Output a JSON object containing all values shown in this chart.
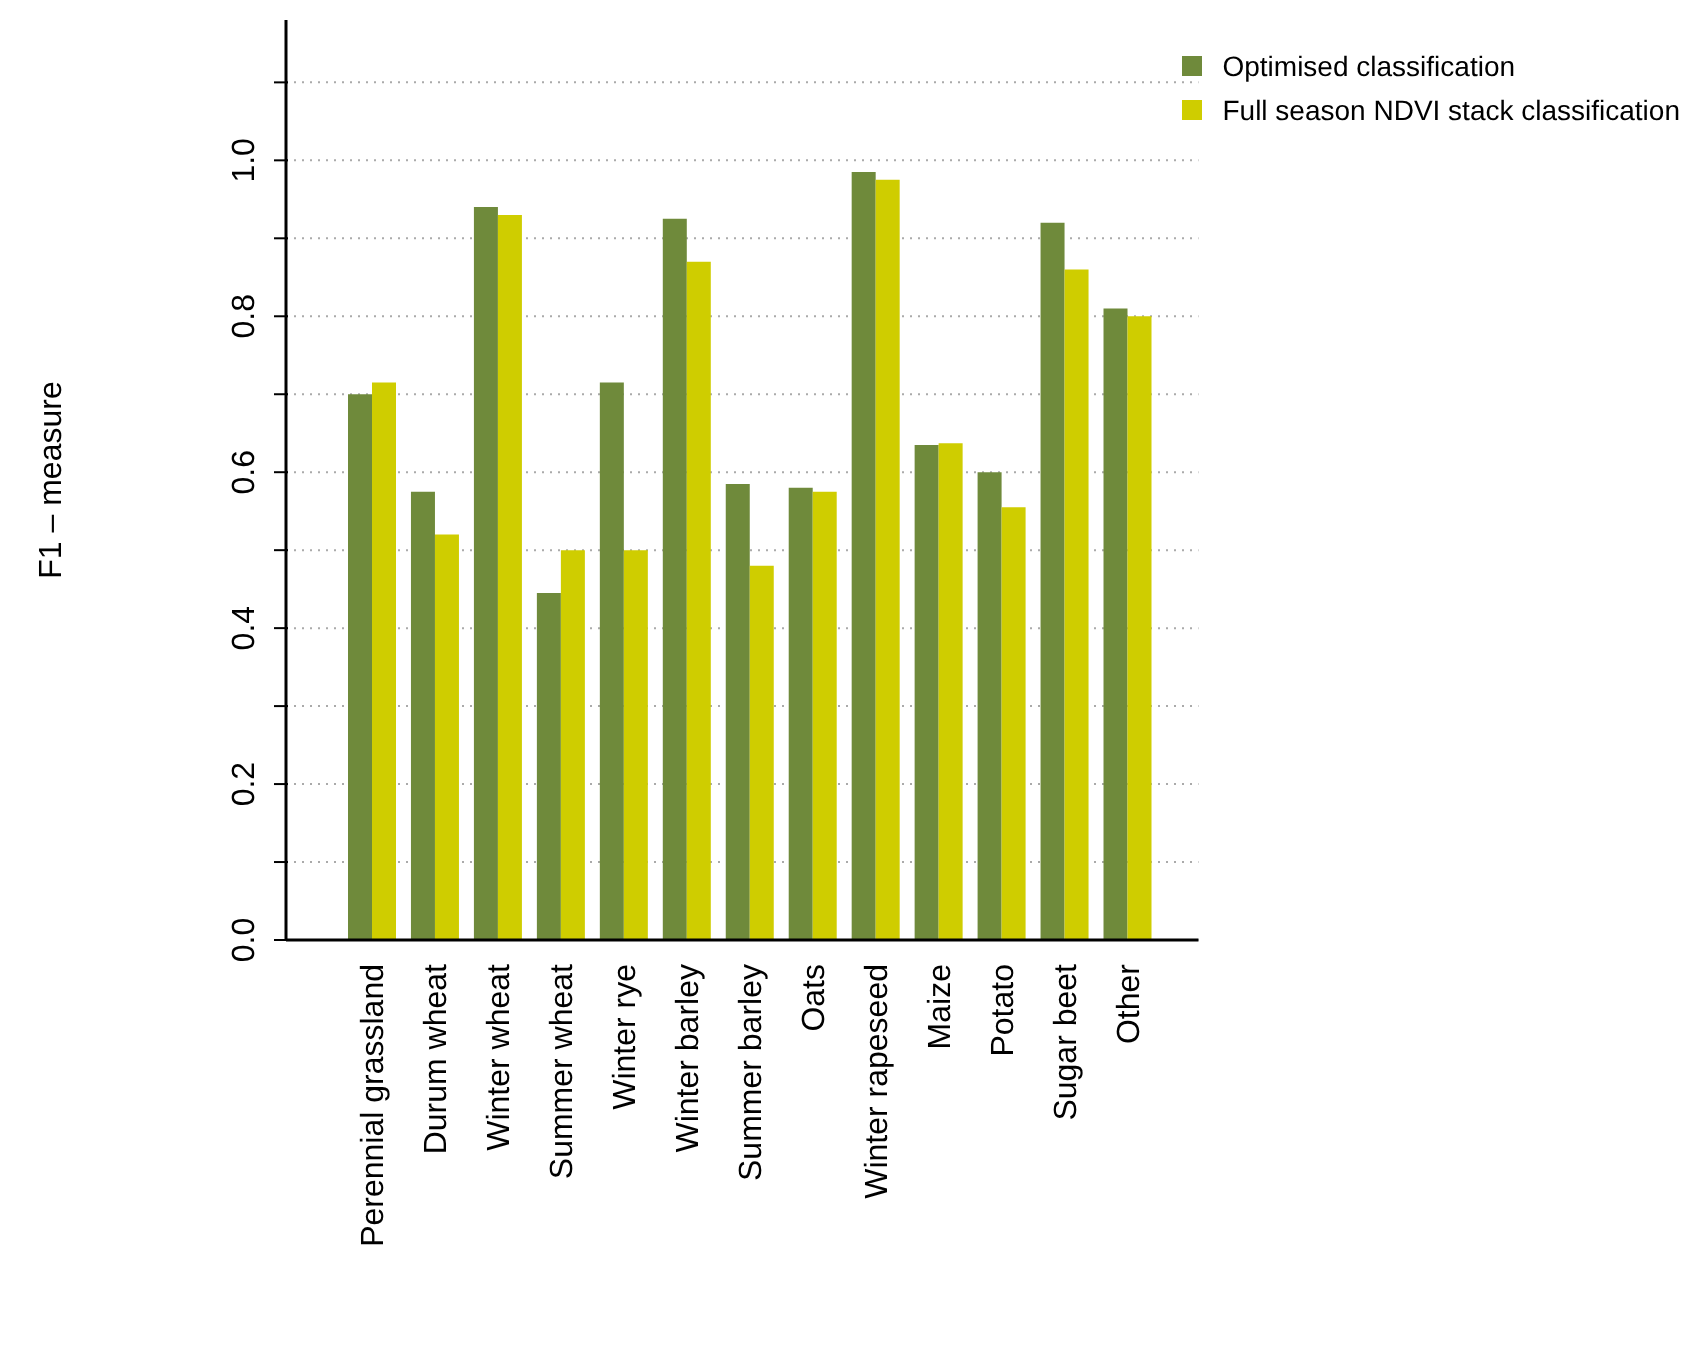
{
  "chart_data": {
    "type": "bar",
    "ylabel": "F1 – measure",
    "categories": [
      "Perennial grassland",
      "Durum wheat",
      "Winter wheat",
      "Summer wheat",
      "Winter rye",
      "Winter barley",
      "Summer barley",
      "Oats",
      "Winter rapeseed",
      "Maize",
      "Potato",
      "Sugar beet",
      "Other"
    ],
    "series": [
      {
        "name": "Optimised classification",
        "color": "#6f8a3b",
        "values": [
          0.7,
          0.575,
          0.94,
          0.445,
          0.715,
          0.925,
          0.585,
          0.58,
          0.985,
          0.635,
          0.6,
          0.92,
          0.81
        ]
      },
      {
        "name": "Full season NDVI stack classification",
        "color": "#cfcd00",
        "values": [
          0.715,
          0.52,
          0.93,
          0.5,
          0.5,
          0.87,
          0.48,
          0.575,
          0.975,
          0.637,
          0.555,
          0.86,
          0.8
        ]
      }
    ],
    "ylim": [
      0,
      1.18
    ],
    "yticks": [
      {
        "value": 0,
        "label": "0.0"
      },
      {
        "value": 0.1,
        "label": null
      },
      0.2,
      {
        "value": 0.3,
        "label": null
      },
      0.4,
      {
        "value": 0.5,
        "label": null
      },
      0.6,
      {
        "value": 0.7,
        "label": null
      },
      0.8,
      {
        "value": 0.9,
        "label": null
      },
      {
        "value": 1,
        "label": "1.0"
      },
      {
        "value": 1.1,
        "label": null
      }
    ],
    "grid": "y",
    "legend": "top right"
  }
}
